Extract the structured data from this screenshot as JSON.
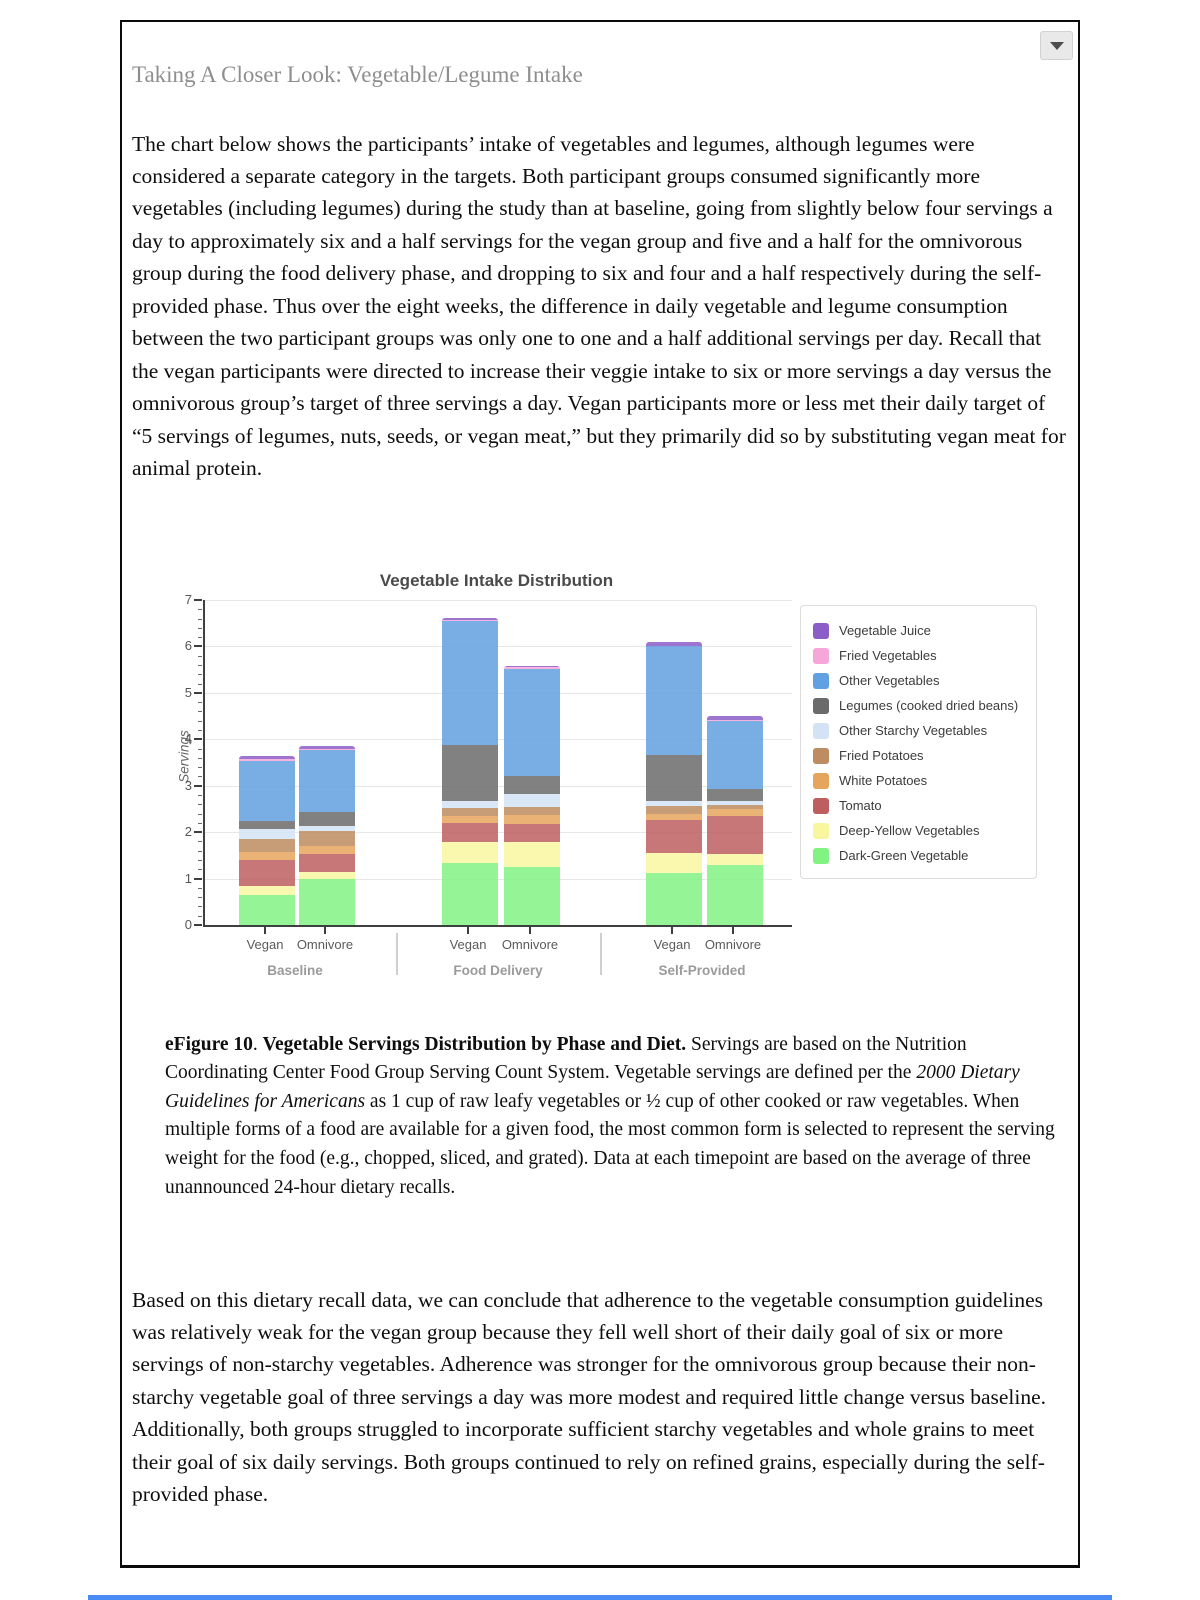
{
  "window": {
    "dropdown_tooltip": "collapse-section"
  },
  "heading": "Taking A Closer Look: Vegetable/Legume Intake",
  "paragraph1": "The chart below shows the participants’ intake of vegetables and legumes, although legumes were considered a separate category in the targets. Both participant groups consumed significantly more vegetables (including legumes) during the study than at baseline, going from slightly below four servings a day to approximately six and a half servings for the vegan group and five and a half for the omnivorous group during the food delivery phase, and dropping to six and four and a half respectively during the self-provided phase. Thus over the eight weeks, the difference in daily vegetable and legume consumption between the two participant groups was only one to one and a half additional servings per day. Recall that the vegan participants were directed to increase their veggie intake to six or more servings a day versus the omnivorous group’s target of three servings a day. Vegan participants more or less met their daily target of “5 servings of legumes, nuts, seeds, or vegan meat,” but they primarily did so by substituting vegan meat for animal protein.",
  "caption": {
    "bold1": "eFigure 10",
    "sep": ". ",
    "bold2": "Vegetable Servings Distribution by Phase and Diet.",
    "text_a": " Servings are based on the Nutrition Coordinating Center Food Group Serving Count System. Vegetable servings are defined per the ",
    "italic": "2000 Dietary Guidelines for Americans",
    "text_b": " as 1 cup of raw leafy vegetables or ½ cup of other cooked or raw vegetables. When multiple forms of a food are available for a given food, the most common form is selected to represent the serving weight for the food (e.g., chopped, sliced, and grated). Data at each timepoint are based on the average of three unannounced 24-hour dietary recalls."
  },
  "paragraph2": "Based on this dietary recall data, we can conclude that adherence to the vegetable consumption guidelines was relatively weak for the vegan group because they fell well short of their daily goal of six or more servings of non-starchy vegetables. Adherence was stronger for the omnivorous group because their non-starchy vegetable goal of three servings a day was more modest and required little change versus baseline. Additionally, both groups struggled to incorporate sufficient starchy vegetables and whole grains to meet their goal of six daily servings. Both groups continued to rely on refined grains, especially during the self-provided phase.",
  "chart_data": {
    "type": "bar",
    "stacked": true,
    "title": "Vegetable Intake Distribution",
    "ylabel": "Servings",
    "xlabel": "",
    "ylim": [
      0,
      7
    ],
    "y_ticks": [
      0,
      1,
      2,
      3,
      4,
      5,
      6,
      7
    ],
    "grid": true,
    "legend_position": "right",
    "groups": [
      "Baseline",
      "Food Delivery",
      "Self-Provided"
    ],
    "bar_labels": [
      "Vegan",
      "Omnivore",
      "Vegan",
      "Omnivore",
      "Vegan",
      "Omnivore"
    ],
    "bar_totals": [
      3.65,
      3.85,
      6.6,
      5.58,
      6.1,
      4.5
    ],
    "series_bottom_to_top": [
      {
        "name": "Dark-Green Vegetable",
        "color": "#82f282",
        "values": [
          0.65,
          1.0,
          1.33,
          1.24,
          1.12,
          1.3
        ]
      },
      {
        "name": "Deep-Yellow Vegetables",
        "color": "#f9f6a0",
        "values": [
          0.19,
          0.15,
          0.45,
          0.54,
          0.43,
          0.23
        ]
      },
      {
        "name": "Tomato",
        "color": "#bd5f5f",
        "values": [
          0.55,
          0.39,
          0.42,
          0.39,
          0.72,
          0.82
        ]
      },
      {
        "name": "White Potatoes",
        "color": "#e6a55c",
        "values": [
          0.19,
          0.17,
          0.14,
          0.2,
          0.13,
          0.14
        ]
      },
      {
        "name": "Fried Potatoes",
        "color": "#bd8c60",
        "values": [
          0.27,
          0.32,
          0.18,
          0.18,
          0.16,
          0.09
        ]
      },
      {
        "name": "Other Starchy Vegetables",
        "color": "#d3e3f5",
        "values": [
          0.22,
          0.1,
          0.16,
          0.27,
          0.11,
          0.09
        ]
      },
      {
        "name": "Legumes (cooked dried beans)",
        "color": "#6b6b6b",
        "values": [
          0.17,
          0.3,
          1.2,
          0.4,
          0.99,
          0.27
        ]
      },
      {
        "name": "Other Vegetables",
        "color": "#61a0e1",
        "values": [
          1.3,
          1.33,
          2.67,
          2.3,
          2.34,
          1.46
        ]
      },
      {
        "name": "Fried Vegetables",
        "color": "#f7a6d8",
        "values": [
          0.03,
          0.04,
          0.02,
          0.03,
          0.02,
          0.02
        ]
      },
      {
        "name": "Vegetable Juice",
        "color": "#8a5dc7",
        "values": [
          0.08,
          0.05,
          0.04,
          0.03,
          0.08,
          0.08
        ]
      }
    ],
    "legend_top_to_bottom": [
      "Vegetable Juice",
      "Fried Vegetables",
      "Other Vegetables",
      "Legumes (cooked dried beans)",
      "Other Starchy Vegetables",
      "Fried Potatoes",
      "White Potatoes",
      "Tomato",
      "Deep-Yellow Vegetables",
      "Dark-Green Vegetable"
    ]
  }
}
